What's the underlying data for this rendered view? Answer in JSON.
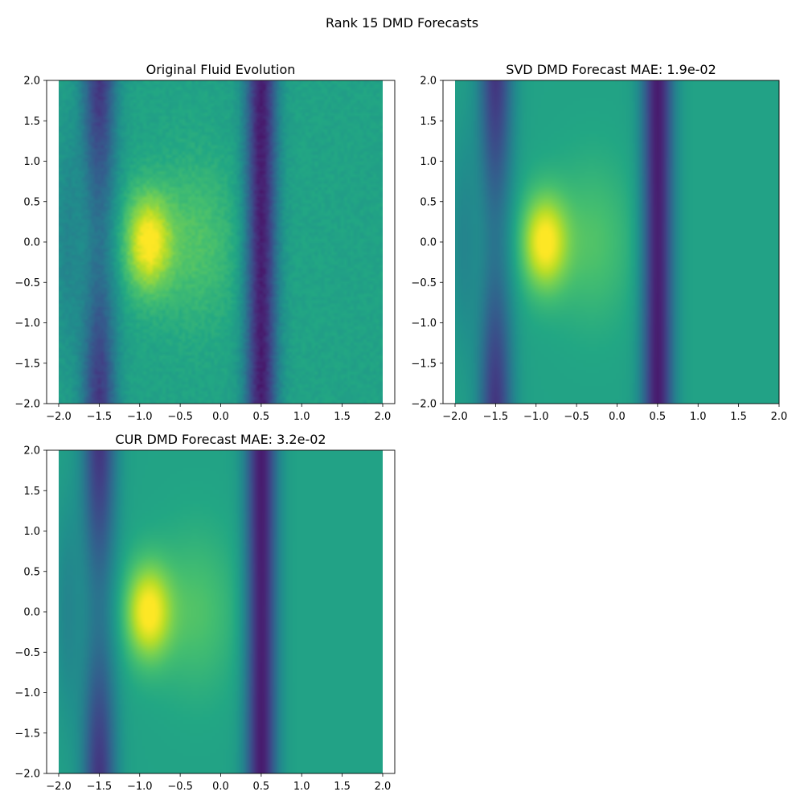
{
  "figure": {
    "suptitle": "Rank 15 DMD Forecasts"
  },
  "chart_data": [
    {
      "type": "heatmap",
      "title": "Original Fluid Evolution",
      "xlim": [
        -2.0,
        2.0
      ],
      "ylim": [
        -2.0,
        2.0
      ],
      "xticks": [
        -2.0,
        -1.5,
        -1.0,
        -0.5,
        0.0,
        0.5,
        1.0,
        1.5,
        2.0
      ],
      "yticks": [
        -2.0,
        -1.5,
        -1.0,
        -0.5,
        0.0,
        0.5,
        1.0,
        1.5,
        2.0
      ],
      "xtick_labels": [
        "−2.0",
        "−1.5",
        "−1.0",
        "−0.5",
        "0.0",
        "0.5",
        "1.0",
        "1.5",
        "2.0"
      ],
      "ytick_labels": [
        "−2.0",
        "−1.5",
        "−1.0",
        "−0.5",
        "0.0",
        "0.5",
        "1.0",
        "1.5",
        "2.0"
      ],
      "colormap": "viridis",
      "noisy": true,
      "features": {
        "dark_columns_x": [
          -1.5,
          0.5
        ],
        "bright_spot": [
          -0.9,
          0.0
        ]
      }
    },
    {
      "type": "heatmap",
      "title": "SVD DMD Forecast MAE: 1.9e-02",
      "xlim": [
        -2.0,
        2.0
      ],
      "ylim": [
        -2.0,
        2.0
      ],
      "xticks": [
        -2.0,
        -1.5,
        -1.0,
        -0.5,
        0.0,
        0.5,
        1.0,
        1.5,
        2.0
      ],
      "yticks": [
        -2.0,
        -1.5,
        -1.0,
        -0.5,
        0.0,
        0.5,
        1.0,
        1.5,
        2.0
      ],
      "xtick_labels": [
        "−2.0",
        "−1.5",
        "−1.0",
        "−0.5",
        "0.0",
        "0.5",
        "1.0",
        "1.5",
        "2.0"
      ],
      "ytick_labels": [
        "−2.0",
        "−1.5",
        "−1.0",
        "−0.5",
        "0.0",
        "0.5",
        "1.0",
        "1.5",
        "2.0"
      ],
      "colormap": "viridis",
      "noisy": false,
      "features": {
        "dark_columns_x": [
          -1.5,
          0.5
        ],
        "bright_spot": [
          -0.9,
          0.0
        ]
      }
    },
    {
      "type": "heatmap",
      "title": "CUR DMD Forecast MAE: 3.2e-02",
      "xlim": [
        -2.0,
        2.0
      ],
      "ylim": [
        -2.0,
        2.0
      ],
      "xticks": [
        -2.0,
        -1.5,
        -1.0,
        -0.5,
        0.0,
        0.5,
        1.0,
        1.5,
        2.0
      ],
      "yticks": [
        -2.0,
        -1.5,
        -1.0,
        -0.5,
        0.0,
        0.5,
        1.0,
        1.5,
        2.0
      ],
      "xtick_labels": [
        "−2.0",
        "−1.5",
        "−1.0",
        "−0.5",
        "0.0",
        "0.5",
        "1.0",
        "1.5",
        "2.0"
      ],
      "ytick_labels": [
        "−2.0",
        "−1.5",
        "−1.0",
        "−0.5",
        "0.0",
        "0.5",
        "1.0",
        "1.5",
        "2.0"
      ],
      "colormap": "viridis",
      "noisy": false,
      "features": {
        "dark_columns_x": [
          -1.5,
          0.5
        ],
        "bright_spot": [
          -0.9,
          0.0
        ]
      }
    }
  ]
}
